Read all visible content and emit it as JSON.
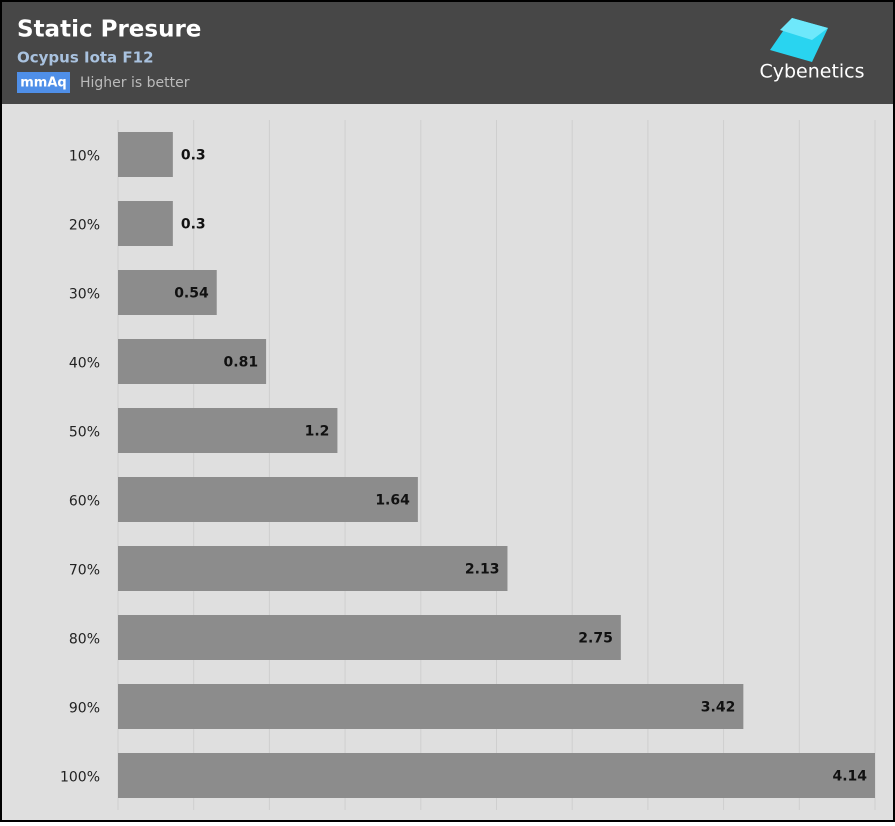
{
  "logo": "Cybenetics",
  "chart_data": {
    "type": "hbar",
    "title": "Static Presure",
    "subtitle": "Ocypus Iota F12",
    "unit": "mmAq",
    "note": "Higher is better",
    "categories": [
      "10%",
      "20%",
      "30%",
      "40%",
      "50%",
      "60%",
      "70%",
      "80%",
      "90%",
      "100%"
    ],
    "values": [
      0.3,
      0.3,
      0.54,
      0.81,
      1.2,
      1.64,
      2.13,
      2.75,
      3.42,
      4.14
    ],
    "color": "#8c8c8c",
    "xlim": [
      0,
      4.14
    ],
    "grid": true
  }
}
